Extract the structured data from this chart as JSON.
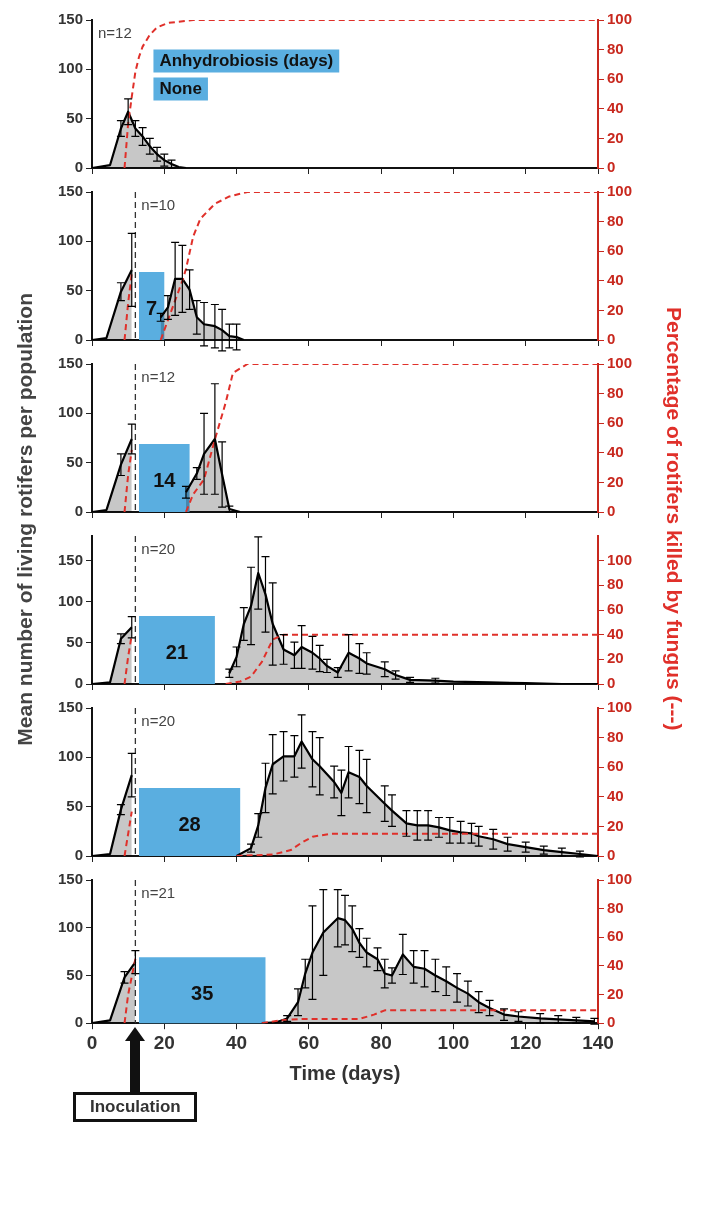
{
  "chart_data": [
    {
      "type": "area",
      "ylabel": "Mean number of living rotifers per population",
      "y2label": "Percentage of rotifers killed by fungus (---)",
      "xlim": [
        0,
        140
      ],
      "xticks": [
        0,
        20,
        40,
        60,
        80,
        100,
        120,
        140
      ],
      "ylim": [
        0,
        150
      ],
      "yticks": [
        0,
        50,
        100,
        150
      ],
      "y2lim": [
        0,
        100
      ],
      "y2ticks": [
        0,
        20,
        40,
        60,
        80,
        100
      ],
      "tick_labels": "y",
      "marker": "none",
      "annotations": [
        "n=12",
        "Anhydrobiosis (days)",
        "None"
      ],
      "series": [
        {
          "type": "area",
          "color": "#000000",
          "x": [
            0,
            5,
            8,
            10,
            12,
            14,
            16,
            18,
            20,
            22,
            24,
            26
          ],
          "values": [
            0,
            3,
            40,
            57,
            40,
            32,
            22,
            14,
            8,
            4,
            1,
            0
          ],
          "errors": [
            null,
            null,
            8,
            13,
            8,
            9,
            8,
            7,
            6,
            4,
            null,
            null
          ]
        },
        {
          "type": "line",
          "axis": "y2",
          "line_style": "dashed",
          "color": "#e0302a",
          "x": [
            9,
            10,
            11,
            12,
            13,
            14,
            16,
            18,
            21,
            28,
            140
          ],
          "values": [
            0,
            30,
            48,
            65,
            75,
            82,
            90,
            95,
            98,
            100,
            100
          ]
        }
      ]
    },
    {
      "type": "area",
      "xlim": [
        0,
        140
      ],
      "xticks": [
        0,
        20,
        40,
        60,
        80,
        100,
        120,
        140
      ],
      "ylim": [
        0,
        150
      ],
      "yticks": [
        0,
        50,
        100,
        150
      ],
      "y2lim": [
        0,
        100
      ],
      "y2ticks": [
        0,
        20,
        40,
        60,
        80,
        100
      ],
      "tick_labels": "y",
      "marker": "none",
      "annotations": [
        "n=10"
      ],
      "ref_lines": [
        {
          "axis": "x",
          "value": 12,
          "line_style": "dashed",
          "color": "#333333"
        }
      ],
      "bands": [
        {
          "axis": "x",
          "from": 13,
          "to": 20,
          "label": "7",
          "color": "#5aaee0"
        }
      ],
      "series": [
        {
          "type": "area",
          "color": "#000000",
          "x": [
            0,
            4,
            8,
            11,
            15,
            19,
            21,
            23,
            25,
            27,
            29,
            31,
            34,
            36,
            38,
            40,
            42
          ],
          "values": [
            0,
            2,
            49,
            71,
            null,
            23,
            33,
            62,
            62,
            51,
            23,
            16,
            14,
            10,
            4,
            3,
            0
          ],
          "errors": [
            null,
            null,
            9,
            37,
            null,
            4,
            12,
            37,
            34,
            20,
            17,
            22,
            22,
            21,
            12,
            13,
            null
          ]
        },
        {
          "type": "line",
          "axis": "y2",
          "line_style": "dashed",
          "color": "#e0302a",
          "x": [
            9,
            10,
            11,
            15,
            19,
            22,
            25,
            26,
            28,
            30,
            34,
            38,
            43,
            140
          ],
          "values": [
            0,
            25,
            45,
            null,
            0,
            20,
            40,
            48,
            70,
            82,
            92,
            97,
            100,
            100
          ]
        }
      ]
    },
    {
      "type": "area",
      "xlim": [
        0,
        140
      ],
      "xticks": [
        0,
        20,
        40,
        60,
        80,
        100,
        120,
        140
      ],
      "ylim": [
        0,
        150
      ],
      "yticks": [
        0,
        50,
        100,
        150
      ],
      "y2lim": [
        0,
        100
      ],
      "y2ticks": [
        0,
        20,
        40,
        60,
        80,
        100
      ],
      "tick_labels": "y",
      "marker": "none",
      "annotations": [
        "n=12"
      ],
      "ref_lines": [
        {
          "axis": "x",
          "value": 12,
          "line_style": "dashed",
          "color": "#333333"
        }
      ],
      "bands": [
        {
          "axis": "x",
          "from": 13,
          "to": 27,
          "label": "14",
          "color": "#5aaee0"
        }
      ],
      "series": [
        {
          "type": "area",
          "color": "#000000",
          "x": [
            0,
            4,
            8,
            11,
            18,
            26,
            29,
            31,
            34,
            36,
            38,
            41
          ],
          "values": [
            0,
            2,
            48,
            74,
            null,
            20,
            39,
            59,
            74,
            38,
            3,
            0
          ],
          "errors": [
            null,
            null,
            11,
            15,
            null,
            6,
            6,
            41,
            56,
            33,
            3,
            null
          ]
        },
        {
          "type": "line",
          "axis": "y2",
          "line_style": "dashed",
          "color": "#e0302a",
          "x": [
            9,
            10,
            11,
            18,
            26,
            28,
            31,
            34,
            37,
            39,
            43,
            140
          ],
          "values": [
            0,
            25,
            42,
            null,
            0,
            12,
            22,
            49,
            74,
            94,
            100,
            100
          ]
        }
      ]
    },
    {
      "type": "area",
      "xlim": [
        0,
        140
      ],
      "xticks": [
        0,
        20,
        40,
        60,
        80,
        100,
        120,
        140
      ],
      "ylim": [
        0,
        180
      ],
      "yticks": [
        0,
        50,
        100,
        150
      ],
      "y2lim": [
        0,
        120
      ],
      "y2ticks": [
        0,
        20,
        40,
        60,
        80,
        100
      ],
      "tick_labels": "y",
      "marker": "none",
      "annotations": [
        "n=20"
      ],
      "ref_lines": [
        {
          "axis": "x",
          "value": 12,
          "line_style": "dashed",
          "color": "#333333"
        }
      ],
      "bands": [
        {
          "axis": "x",
          "from": 13,
          "to": 34,
          "label": "21",
          "color": "#5aaee0"
        }
      ],
      "series": [
        {
          "type": "area",
          "color": "#000000",
          "x": [
            0,
            5,
            8,
            11,
            22,
            38,
            40,
            42,
            44,
            46,
            48,
            50,
            53,
            56,
            58,
            61,
            63,
            65,
            68,
            71,
            74,
            76,
            81,
            84,
            88,
            95,
            100,
            110,
            120,
            130,
            140
          ],
          "values": [
            0,
            2,
            55,
            69,
            null,
            13,
            33,
            73,
            95,
            135,
            109,
            73,
            42,
            35,
            45,
            38,
            31,
            22,
            14,
            38,
            31,
            25,
            18,
            11,
            5,
            4,
            3,
            2,
            1,
            0,
            0
          ],
          "errors": [
            null,
            null,
            6,
            13,
            null,
            5,
            12,
            20,
            47,
            44,
            46,
            50,
            18,
            16,
            26,
            20,
            16,
            8,
            6,
            22,
            18,
            13,
            9,
            5,
            3,
            3,
            null,
            null,
            null,
            null,
            null
          ]
        },
        {
          "type": "line",
          "axis": "y2",
          "line_style": "dashed",
          "color": "#e0302a",
          "x": [
            9,
            10,
            11,
            22,
            37,
            41,
            44,
            47,
            50,
            53,
            140
          ],
          "values": [
            0,
            22,
            40,
            null,
            0,
            2,
            6,
            18,
            36,
            40,
            40
          ]
        }
      ]
    },
    {
      "type": "area",
      "xlim": [
        0,
        140
      ],
      "xticks": [
        0,
        20,
        40,
        60,
        80,
        100,
        120,
        140
      ],
      "ylim": [
        0,
        150
      ],
      "yticks": [
        0,
        50,
        100,
        150
      ],
      "y2lim": [
        0,
        100
      ],
      "y2ticks": [
        0,
        20,
        40,
        60,
        80,
        100
      ],
      "tick_labels": "y",
      "marker": "none",
      "annotations": [
        "n=20"
      ],
      "ref_lines": [
        {
          "axis": "x",
          "value": 12,
          "line_style": "dashed",
          "color": "#333333"
        }
      ],
      "bands": [
        {
          "axis": "x",
          "from": 13,
          "to": 41,
          "label": "28",
          "color": "#5aaee0"
        }
      ],
      "series": [
        {
          "type": "area",
          "color": "#000000",
          "x": [
            0,
            5,
            8,
            11,
            25,
            40,
            44,
            46,
            48,
            50,
            53,
            56,
            58,
            61,
            63,
            67,
            69,
            71,
            74,
            76,
            81,
            83,
            87,
            90,
            93,
            96,
            99,
            102,
            105,
            107,
            111,
            115,
            120,
            125,
            130,
            135,
            140
          ],
          "values": [
            0,
            2,
            47,
            82,
            null,
            0,
            8,
            31,
            69,
            93,
            101,
            101,
            116,
            98,
            91,
            75,
            64,
            85,
            80,
            71,
            53,
            46,
            33,
            31,
            31,
            29,
            26,
            24,
            23,
            20,
            17,
            12,
            9,
            6,
            4,
            2,
            0
          ],
          "errors": [
            null,
            null,
            5,
            22,
            null,
            null,
            4,
            12,
            25,
            30,
            25,
            21,
            27,
            28,
            29,
            16,
            23,
            26,
            27,
            27,
            18,
            16,
            13,
            15,
            15,
            10,
            13,
            11,
            10,
            10,
            10,
            7,
            5,
            4,
            4,
            3,
            null
          ]
        },
        {
          "type": "line",
          "axis": "y2",
          "line_style": "dashed",
          "color": "#e0302a",
          "x": [
            9,
            10,
            11,
            25,
            40,
            50,
            55,
            58,
            61,
            66,
            140
          ],
          "values": [
            0,
            15,
            30,
            null,
            0,
            1,
            4,
            9,
            13,
            15,
            15
          ]
        }
      ]
    },
    {
      "type": "area",
      "xlabel": "Time (days)",
      "xlim": [
        0,
        140
      ],
      "xticks": [
        0,
        20,
        40,
        60,
        80,
        100,
        120,
        140
      ],
      "ylim": [
        0,
        150
      ],
      "yticks": [
        0,
        50,
        100,
        150
      ],
      "y2lim": [
        0,
        100
      ],
      "y2ticks": [
        0,
        20,
        40,
        60,
        80,
        100
      ],
      "marker": "none",
      "annotations": [
        "n=21"
      ],
      "ref_lines": [
        {
          "axis": "x",
          "value": 12,
          "line_style": "dashed",
          "color": "#333333",
          "label": "Inoculation"
        }
      ],
      "bands": [
        {
          "axis": "x",
          "from": 13,
          "to": 48,
          "label": "35",
          "color": "#5aaee0"
        }
      ],
      "series": [
        {
          "type": "area",
          "color": "#000000",
          "x": [
            0,
            5,
            9,
            12,
            30,
            47,
            51,
            54,
            57,
            59,
            61,
            64,
            68,
            70,
            72,
            74,
            76,
            79,
            81,
            83,
            86,
            89,
            92,
            95,
            98,
            101,
            104,
            107,
            110,
            114,
            118,
            124,
            129,
            134,
            139
          ],
          "values": [
            0,
            3,
            48,
            64,
            null,
            0,
            1,
            5,
            22,
            52,
            74,
            95,
            110,
            108,
            99,
            84,
            74,
            67,
            52,
            50,
            72,
            59,
            57,
            50,
            44,
            37,
            31,
            22,
            16,
            9,
            7,
            5,
            4,
            3,
            2
          ],
          "errors": [
            null,
            null,
            6,
            12,
            null,
            null,
            null,
            3,
            14,
            15,
            49,
            45,
            30,
            26,
            24,
            15,
            15,
            12,
            15,
            8,
            21,
            17,
            19,
            17,
            15,
            15,
            13,
            11,
            8,
            6,
            5,
            5,
            4,
            3,
            3
          ]
        },
        {
          "type": "line",
          "axis": "y2",
          "line_style": "dashed",
          "color": "#e0302a",
          "x": [
            9,
            10,
            12,
            30,
            47,
            52,
            58,
            74,
            78,
            81,
            140
          ],
          "values": [
            0,
            20,
            45,
            null,
            0,
            2,
            3,
            3,
            6,
            9,
            9
          ]
        }
      ]
    }
  ]
}
